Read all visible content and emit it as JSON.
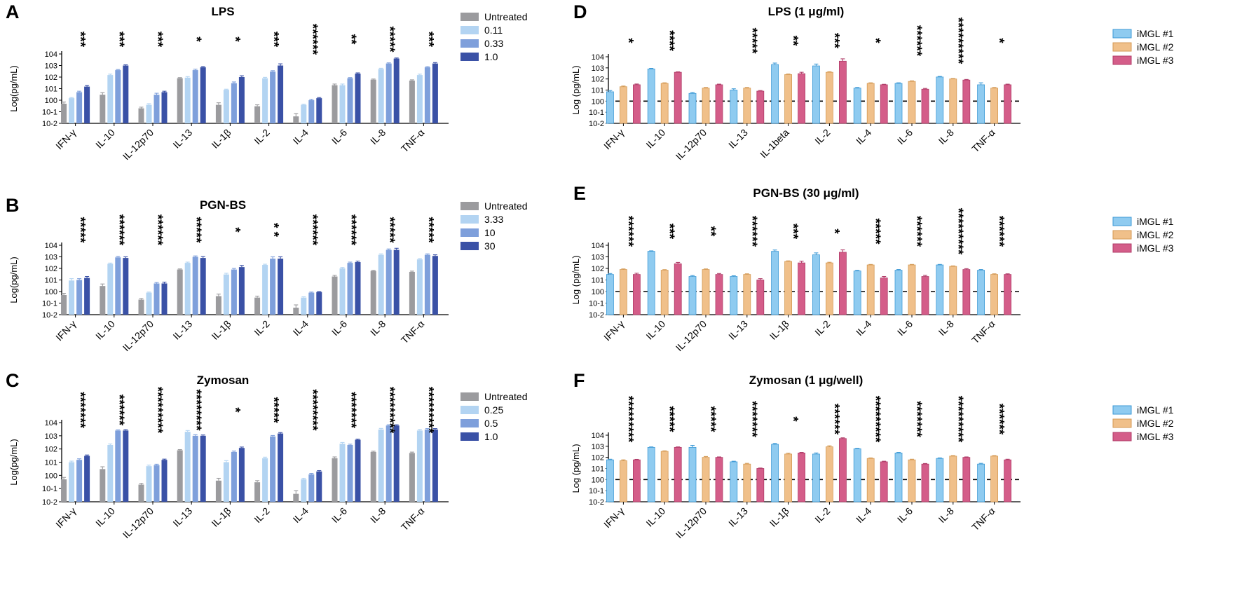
{
  "colors": {
    "dose": [
      "#9b9b9e",
      "#b3d4f2",
      "#7e9fdb",
      "#3a51a6"
    ],
    "donor": [
      "#8fcbf0",
      "#f0c08a",
      "#d45d89"
    ],
    "donor_edge": [
      "#3e9ad6",
      "#d49a55",
      "#b03c68"
    ]
  },
  "chart_data": [
    {
      "id": "A",
      "letter": "A",
      "title": "LPS",
      "type": "bar",
      "ylabel": "Log(pg/mL)",
      "yscale": "log",
      "ylim": [
        0.01,
        10000
      ],
      "categories": [
        "IFN-γ",
        "IL-10",
        "IL-12p70",
        "IL-13",
        "IL-1β",
        "IL-2",
        "IL-4",
        "IL-6",
        "IL-8",
        "TNF-α"
      ],
      "series": [
        {
          "name": "Untreated",
          "values": [
            0.5,
            3,
            0.2,
            80,
            0.4,
            0.3,
            0.04,
            20,
            60,
            50
          ],
          "errors": [
            0.2,
            1.5,
            0.05,
            10,
            0.2,
            0.1,
            0.03,
            5,
            8,
            8
          ]
        },
        {
          "name": "0.11",
          "values": [
            1.5,
            150,
            0.4,
            90,
            8,
            80,
            0.4,
            20,
            500,
            150
          ],
          "errors": [
            0.2,
            30,
            0.1,
            20,
            1,
            15,
            0.05,
            5,
            80,
            30
          ]
        },
        {
          "name": "0.33",
          "values": [
            5,
            400,
            3,
            400,
            30,
            300,
            1,
            80,
            1500,
            700
          ],
          "errors": [
            1,
            50,
            1,
            80,
            8,
            60,
            0.2,
            10,
            200,
            100
          ]
        },
        {
          "name": "1.0",
          "values": [
            15,
            1000,
            5,
            700,
            100,
            1000,
            1.5,
            200,
            4000,
            1500
          ],
          "errors": [
            4,
            150,
            1,
            120,
            30,
            400,
            0.2,
            30,
            500,
            300
          ]
        }
      ],
      "legend_items": [
        "Untreated",
        "0.11",
        "0.33",
        "1.0"
      ],
      "significance": [
        "***",
        "***",
        "***",
        "*",
        "*",
        "***",
        "******",
        "**",
        "*****",
        "***"
      ],
      "yticks": [
        "10-2",
        "10-1",
        "100",
        "101",
        "102",
        "103",
        "104"
      ],
      "dashed_line": null
    },
    {
      "id": "B",
      "letter": "B",
      "title": "PGN-BS",
      "type": "bar",
      "ylabel": "Log(pg/mL)",
      "yscale": "log",
      "ylim": [
        0.01,
        10000
      ],
      "categories": [
        "IFN-γ",
        "IL-10",
        "IL-12p70",
        "IL-13",
        "IL-1β",
        "IL-2",
        "IL-4",
        "IL-6",
        "IL-8",
        "TNF-α"
      ],
      "series": [
        {
          "name": "Untreated",
          "values": [
            0.5,
            3,
            0.2,
            80,
            0.4,
            0.3,
            0.04,
            20,
            60,
            50
          ],
          "errors": [
            0.2,
            1.5,
            0.05,
            10,
            0.2,
            0.1,
            0.03,
            5,
            8,
            8
          ]
        },
        {
          "name": "3.33",
          "values": [
            9,
            250,
            0.8,
            300,
            30,
            200,
            0.3,
            100,
            1500,
            600
          ],
          "errors": [
            4,
            40,
            0.1,
            50,
            8,
            30,
            0.05,
            20,
            300,
            100
          ]
        },
        {
          "name": "10",
          "values": [
            10,
            900,
            5,
            1000,
            80,
            700,
            0.8,
            300,
            4000,
            1500
          ],
          "errors": [
            3,
            200,
            1,
            200,
            20,
            300,
            0.1,
            50,
            800,
            300
          ]
        },
        {
          "name": "30",
          "values": [
            15,
            800,
            5,
            800,
            130,
            700,
            0.9,
            350,
            4000,
            1200
          ],
          "errors": [
            5,
            200,
            1.5,
            250,
            50,
            300,
            0.1,
            80,
            1500,
            300
          ]
        }
      ],
      "legend_items": [
        "Untreated",
        "3.33",
        "10",
        "30"
      ],
      "significance": [
        "*****",
        "******",
        "******",
        "*****",
        "*",
        "* *",
        "******",
        "******",
        "*****",
        "*****"
      ],
      "yticks": [
        "10-2",
        "10-1",
        "100",
        "101",
        "102",
        "103",
        "104"
      ],
      "dashed_line": null
    },
    {
      "id": "C",
      "letter": "C",
      "title": "Zymosan",
      "type": "bar",
      "ylabel": "Log(pg/mL)",
      "yscale": "log",
      "ylim": [
        0.01,
        10000
      ],
      "categories": [
        "IFN-γ",
        "IL-10",
        "IL-12p70",
        "IL-13",
        "IL-1β",
        "IL-2",
        "IL-4",
        "IL-6",
        "IL-8",
        "TNF-α"
      ],
      "series": [
        {
          "name": "Untreated",
          "values": [
            0.5,
            3,
            0.2,
            80,
            0.4,
            0.3,
            0.04,
            20,
            60,
            50
          ],
          "errors": [
            0.2,
            1.5,
            0.05,
            10,
            0.2,
            0.1,
            0.03,
            5,
            8,
            8
          ]
        },
        {
          "name": "0.25",
          "values": [
            10,
            200,
            5,
            2000,
            10,
            20,
            0.5,
            250,
            3000,
            2500
          ],
          "errors": [
            2,
            40,
            1,
            500,
            3,
            4,
            0.1,
            60,
            600,
            500
          ]
        },
        {
          "name": "0.5",
          "values": [
            15,
            2500,
            6,
            1000,
            60,
            900,
            1.2,
            200,
            6000,
            3000
          ],
          "errors": [
            3,
            300,
            1,
            200,
            10,
            150,
            0.2,
            30,
            800,
            500
          ]
        },
        {
          "name": "1.0",
          "values": [
            30,
            2500,
            15,
            1000,
            120,
            1500,
            2,
            500,
            6000,
            3000
          ],
          "errors": [
            5,
            400,
            2,
            150,
            20,
            250,
            0.3,
            60,
            800,
            500
          ]
        }
      ],
      "legend_items": [
        "Untreated",
        "0.25",
        "0.5",
        "1.0"
      ],
      "significance": [
        "*******",
        "******",
        "*********",
        "********",
        "*",
        "*****",
        "********",
        "*******",
        "*********",
        "*********"
      ],
      "yticks": [
        "10-2",
        "10-1",
        "100",
        "101",
        "102",
        "103",
        "104"
      ],
      "dashed_line": null
    },
    {
      "id": "D",
      "letter": "D",
      "title": "LPS (1 μg/ml)",
      "type": "bar",
      "ylabel": "Log (pg/mL)",
      "yscale": "log",
      "ylim": [
        0.01,
        10000
      ],
      "categories": [
        "IFN-γ",
        "IL-10",
        "IL-12p70",
        "IL-13",
        "IL-1beta",
        "IL-2",
        "IL-4",
        "IL-6",
        "IL-8",
        "TNF-α"
      ],
      "series": [
        {
          "name": "iMGL #1",
          "values": [
            7,
            800,
            5,
            10,
            2000,
            1500,
            15,
            40,
            150,
            30
          ],
          "errors": [
            2,
            100,
            1,
            3,
            700,
            700,
            2,
            5,
            20,
            15
          ]
        },
        {
          "name": "iMGL #2",
          "values": [
            20,
            40,
            15,
            15,
            250,
            400,
            40,
            60,
            100,
            15
          ],
          "errors": [
            3,
            5,
            2,
            2,
            30,
            50,
            5,
            8,
            10,
            2
          ]
        },
        {
          "name": "iMGL #3",
          "values": [
            30,
            400,
            30,
            8,
            300,
            4000,
            30,
            12,
            80,
            30
          ],
          "errors": [
            5,
            40,
            4,
            1,
            100,
            2500,
            3,
            2,
            10,
            4
          ]
        }
      ],
      "legend_items": [
        "iMGL #1",
        "iMGL #2",
        "iMGL #3"
      ],
      "significance": [
        "*",
        "****",
        "",
        "*****",
        "**",
        "***",
        "*",
        "******",
        "*********",
        "*"
      ],
      "yticks": [
        "10-2",
        "10-1",
        "100",
        "101",
        "102",
        "103",
        "104"
      ],
      "dashed_line": 1
    },
    {
      "id": "E",
      "letter": "E",
      "title": "PGN-BS (30 μg/ml)",
      "type": "bar",
      "ylabel": "Log (pg/mL)",
      "yscale": "log",
      "ylim": [
        0.01,
        10000
      ],
      "categories": [
        "IFN-γ",
        "IL-10",
        "IL-12p70",
        "IL-13",
        "IL-1β",
        "IL-2",
        "IL-4",
        "IL-6",
        "IL-8",
        "TNF-α"
      ],
      "series": [
        {
          "name": "iMGL #1",
          "values": [
            30,
            3000,
            20,
            20,
            3000,
            1500,
            60,
            70,
            200,
            70
          ],
          "errors": [
            6,
            300,
            4,
            3,
            900,
            700,
            8,
            10,
            20,
            10
          ]
        },
        {
          "name": "iMGL #2",
          "values": [
            80,
            70,
            80,
            30,
            400,
            300,
            200,
            200,
            150,
            30
          ],
          "errors": [
            10,
            8,
            10,
            4,
            50,
            40,
            20,
            20,
            15,
            4
          ]
        },
        {
          "name": "iMGL #3",
          "values": [
            30,
            250,
            30,
            10,
            300,
            2500,
            15,
            20,
            80,
            30
          ],
          "errors": [
            8,
            80,
            6,
            3,
            120,
            1500,
            5,
            5,
            15,
            4
          ]
        }
      ],
      "legend_items": [
        "iMGL #1",
        "iMGL #2",
        "iMGL #3"
      ],
      "significance": [
        "******",
        "***",
        "**",
        "******",
        "***",
        "*",
        "*****",
        "******",
        "*********",
        "******"
      ],
      "yticks": [
        "10-2",
        "10-1",
        "100",
        "101",
        "102",
        "103",
        "104"
      ],
      "dashed_line": 1
    },
    {
      "id": "F",
      "letter": "F",
      "title": "Zymosan (1 μg/well)",
      "type": "bar",
      "ylabel": "Log (pg/mL)",
      "yscale": "log",
      "ylim": [
        0.01,
        10000
      ],
      "categories": [
        "IFN-γ",
        "IL-10",
        "IL-12p70",
        "IL-13",
        "IL-1β",
        "IL-2",
        "IL-4",
        "IL-6",
        "IL-8",
        "TNF-α"
      ],
      "series": [
        {
          "name": "iMGL #1",
          "values": [
            60,
            800,
            800,
            40,
            1500,
            200,
            600,
            250,
            80,
            25
          ],
          "errors": [
            8,
            80,
            400,
            5,
            300,
            50,
            60,
            30,
            10,
            4
          ]
        },
        {
          "name": "iMGL #2",
          "values": [
            50,
            350,
            100,
            25,
            200,
            900,
            80,
            60,
            130,
            130
          ],
          "errors": [
            10,
            40,
            20,
            4,
            40,
            200,
            10,
            8,
            15,
            15
          ]
        },
        {
          "name": "iMGL #3",
          "values": [
            60,
            800,
            100,
            10,
            250,
            5000,
            40,
            25,
            100,
            60
          ],
          "errors": [
            6,
            80,
            10,
            1,
            30,
            800,
            5,
            3,
            10,
            8
          ]
        }
      ],
      "legend_items": [
        "iMGL #1",
        "iMGL #2",
        "iMGL #3"
      ],
      "significance": [
        "*********",
        "*****",
        "*****",
        "*******",
        "*",
        "******",
        "*********",
        "*******",
        "*********",
        "******"
      ],
      "yticks": [
        "10-2",
        "10-1",
        "100",
        "101",
        "102",
        "103",
        "104"
      ],
      "dashed_line": 1
    }
  ]
}
